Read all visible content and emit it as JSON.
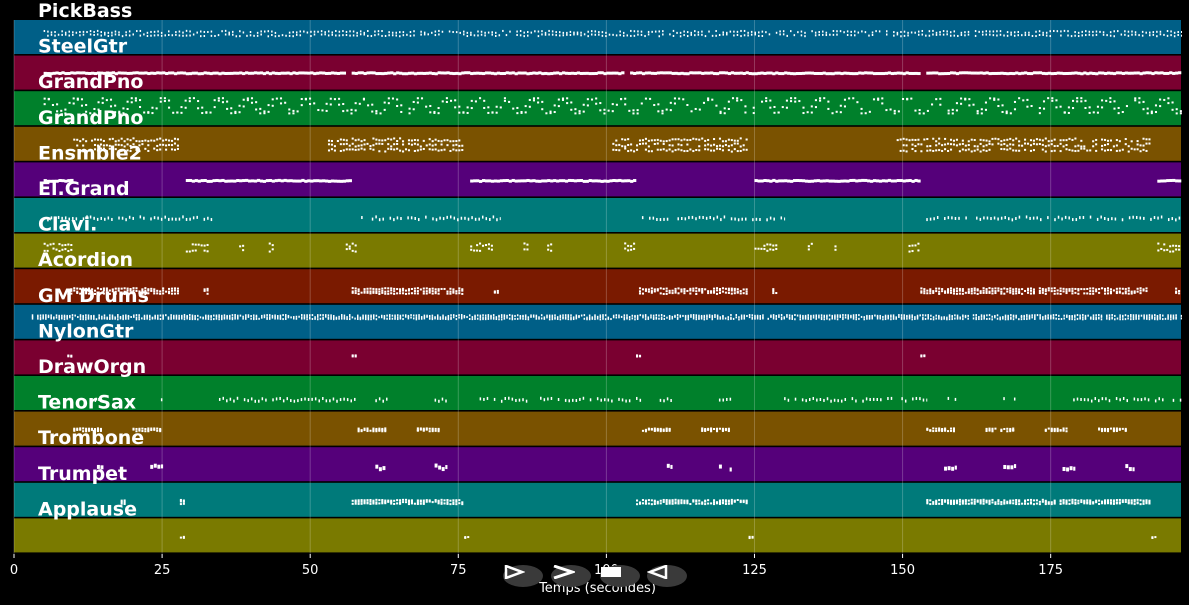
{
  "chart_data": {
    "type": "piano-roll",
    "xlabel": "Temps (secondes)",
    "xlim": [
      0,
      197
    ],
    "xticks": [
      0,
      25,
      50,
      75,
      100,
      125,
      150,
      175
    ],
    "grid": true,
    "tracks": [
      {
        "name": "PickBass",
        "color": "#005f87",
        "pattern": "dense-dotted",
        "segments": [
          [
            5,
            197
          ]
        ],
        "pitch_range": [
          0.55,
          0.75
        ]
      },
      {
        "name": "SteelGtr",
        "color": "#7a0030",
        "pattern": "long-bars",
        "segments": [
          [
            5,
            56
          ],
          [
            57,
            103
          ],
          [
            104,
            153
          ],
          [
            154,
            197
          ]
        ],
        "pitch_range": [
          0.45,
          0.6
        ]
      },
      {
        "name": "GrandPno",
        "color": "#00802b",
        "pattern": "wavy-dense",
        "segments": [
          [
            5,
            197
          ]
        ],
        "pitch_range": [
          0.35,
          0.85
        ]
      },
      {
        "name": "GrandPno",
        "color": "#7a5200",
        "pattern": "clustered",
        "segments": [
          [
            10,
            28
          ],
          [
            53,
            76
          ],
          [
            101,
            124
          ],
          [
            149,
            192
          ]
        ],
        "pitch_range": [
          0.3,
          0.75
        ]
      },
      {
        "name": "Ensmble2",
        "color": "#55007a",
        "pattern": "long-bars",
        "segments": [
          [
            5,
            10
          ],
          [
            29,
            57
          ],
          [
            77,
            105
          ],
          [
            125,
            153
          ],
          [
            193,
            197
          ]
        ],
        "pitch_range": [
          0.45,
          0.55
        ]
      },
      {
        "name": "El.Grand",
        "color": "#007a7a",
        "pattern": "dotted-row",
        "segments": [
          [
            5,
            34
          ],
          [
            58,
            82
          ],
          [
            106,
            130
          ],
          [
            154,
            197
          ]
        ],
        "pitch_range": [
          0.4,
          0.55
        ]
      },
      {
        "name": "Clavi.",
        "color": "#7a7a00",
        "pattern": "sparse",
        "segments": [
          [
            5,
            10
          ],
          [
            29,
            33
          ],
          [
            38,
            39
          ],
          [
            43,
            44
          ],
          [
            56,
            58
          ],
          [
            77,
            81
          ],
          [
            86,
            87
          ],
          [
            90,
            91
          ],
          [
            103,
            105
          ],
          [
            125,
            129
          ],
          [
            134,
            135
          ],
          [
            138,
            139
          ],
          [
            151,
            153
          ],
          [
            193,
            197
          ]
        ],
        "pitch_range": [
          0.5,
          0.8
        ]
      },
      {
        "name": "Acordion",
        "color": "#7a1a00",
        "pattern": "clustered",
        "segments": [
          [
            9,
            28
          ],
          [
            32,
            33
          ],
          [
            57,
            76
          ],
          [
            81,
            82
          ],
          [
            105,
            124
          ],
          [
            128,
            129
          ],
          [
            153,
            192
          ],
          [
            196,
            197
          ]
        ],
        "pitch_range": [
          0.3,
          0.5
        ]
      },
      {
        "name": "GM Drums",
        "color": "#005f87",
        "pattern": "drum-grid",
        "segments": [
          [
            3,
            197
          ]
        ],
        "pitch_range": [
          0.6,
          0.75
        ]
      },
      {
        "name": "NylonGtr",
        "color": "#7a0030",
        "pattern": "sparse",
        "segments": [
          [
            9,
            10
          ],
          [
            57,
            58
          ],
          [
            105,
            106
          ],
          [
            153,
            154
          ]
        ],
        "pitch_range": [
          0.55,
          0.6
        ]
      },
      {
        "name": "DrawOrgn",
        "color": "#00802b",
        "pattern": "dotted-row",
        "segments": [
          [
            13,
            15
          ],
          [
            23,
            25
          ],
          [
            34,
            58
          ],
          [
            61,
            63
          ],
          [
            71,
            73
          ],
          [
            78,
            106
          ],
          [
            109,
            111
          ],
          [
            119,
            121
          ],
          [
            130,
            154
          ],
          [
            157,
            159
          ],
          [
            167,
            169
          ],
          [
            177,
            197
          ]
        ],
        "pitch_range": [
          0.3,
          0.45
        ]
      },
      {
        "name": "TenorSax",
        "color": "#7a5200",
        "pattern": "clustered",
        "segments": [
          [
            10,
            15
          ],
          [
            20,
            25
          ],
          [
            58,
            63
          ],
          [
            68,
            72
          ],
          [
            106,
            111
          ],
          [
            116,
            121
          ],
          [
            154,
            159
          ],
          [
            164,
            169
          ],
          [
            174,
            178
          ],
          [
            183,
            188
          ]
        ],
        "pitch_range": [
          0.45,
          0.55
        ]
      },
      {
        "name": "Trombone",
        "color": "#55007a",
        "pattern": "blocks",
        "segments": [
          [
            14,
            15
          ],
          [
            23,
            25
          ],
          [
            61,
            63
          ],
          [
            71,
            73
          ],
          [
            109,
            111
          ],
          [
            119,
            121
          ],
          [
            157,
            159
          ],
          [
            167,
            169
          ],
          [
            177,
            179
          ],
          [
            187,
            189
          ]
        ],
        "pitch_range": [
          0.4,
          0.6
        ]
      },
      {
        "name": "Trumpet",
        "color": "#007a7a",
        "pattern": "clustered",
        "segments": [
          [
            18,
            19
          ],
          [
            28,
            29
          ],
          [
            57,
            76
          ],
          [
            105,
            124
          ],
          [
            154,
            192
          ]
        ],
        "pitch_range": [
          0.4,
          0.55
        ]
      },
      {
        "name": "Applause",
        "color": "#7a7a00",
        "pattern": "sparse",
        "segments": [
          [
            28,
            29
          ],
          [
            76,
            77
          ],
          [
            124,
            125
          ],
          [
            192,
            193
          ]
        ],
        "pitch_range": [
          0.45,
          0.5
        ]
      }
    ]
  },
  "controls": {
    "icons": [
      "play-icon",
      "fast-forward-icon",
      "stop-icon",
      "rewind-icon"
    ]
  }
}
